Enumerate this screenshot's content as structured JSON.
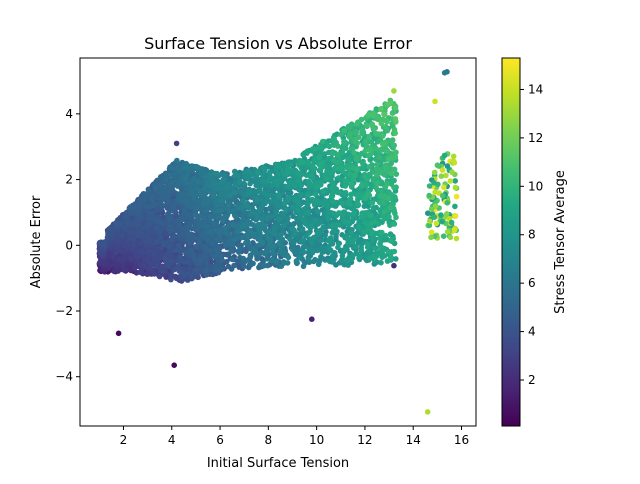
{
  "chart_data": {
    "type": "scatter",
    "title": "Surface Tension vs Absolute Error",
    "xlabel": "Initial Surface Tension",
    "ylabel": "Absolute Error",
    "xlim": [
      0.2,
      16.6
    ],
    "ylim": [
      -5.5,
      5.7
    ],
    "xticks": [
      2,
      4,
      6,
      8,
      10,
      12,
      14,
      16
    ],
    "yticks": [
      -4,
      -2,
      0,
      2,
      4
    ],
    "grid": false,
    "legend": "none",
    "colormap": "viridis",
    "colorbar": {
      "label": "Stress Tensor Average",
      "range": [
        0.1,
        15.3
      ],
      "ticks": [
        2,
        4,
        6,
        8,
        10,
        12,
        14
      ]
    },
    "cluster_summary": [
      {
        "x_range": [
          1.0,
          3.0
        ],
        "y_range": [
          -0.8,
          1.2
        ],
        "c_range": [
          0.3,
          3.0
        ]
      },
      {
        "x_range": [
          3.0,
          6.0
        ],
        "y_range": [
          -1.1,
          2.6
        ],
        "c_range": [
          0.5,
          4.5
        ]
      },
      {
        "x_range": [
          6.0,
          9.0
        ],
        "y_range": [
          -0.9,
          2.6
        ],
        "c_range": [
          2.0,
          7.5
        ]
      },
      {
        "x_range": [
          9.0,
          11.5
        ],
        "y_range": [
          -0.8,
          3.5
        ],
        "c_range": [
          4.0,
          10.0
        ]
      },
      {
        "x_range": [
          11.5,
          13.3
        ],
        "y_range": [
          -0.7,
          4.7
        ],
        "c_range": [
          6.0,
          12.5
        ]
      },
      {
        "x_range": [
          14.5,
          15.9
        ],
        "y_range": [
          0.1,
          3.5
        ],
        "c_range": [
          7.0,
          15.0
        ]
      }
    ],
    "outliers": [
      {
        "x": 1.8,
        "y": -2.68,
        "c": 0.4
      },
      {
        "x": 4.1,
        "y": -3.65,
        "c": 0.4
      },
      {
        "x": 9.8,
        "y": -2.25,
        "c": 1.5
      },
      {
        "x": 14.6,
        "y": -5.07,
        "c": 13.5
      },
      {
        "x": 15.3,
        "y": 5.25,
        "c": 6.5
      },
      {
        "x": 15.4,
        "y": 5.28,
        "c": 6.0
      },
      {
        "x": 14.9,
        "y": 4.38,
        "c": 14.2
      },
      {
        "x": 13.2,
        "y": 4.7,
        "c": 13.0
      },
      {
        "x": 4.2,
        "y": 3.1,
        "c": 3.0
      },
      {
        "x": 13.2,
        "y": -0.62,
        "c": 2.0
      }
    ]
  }
}
